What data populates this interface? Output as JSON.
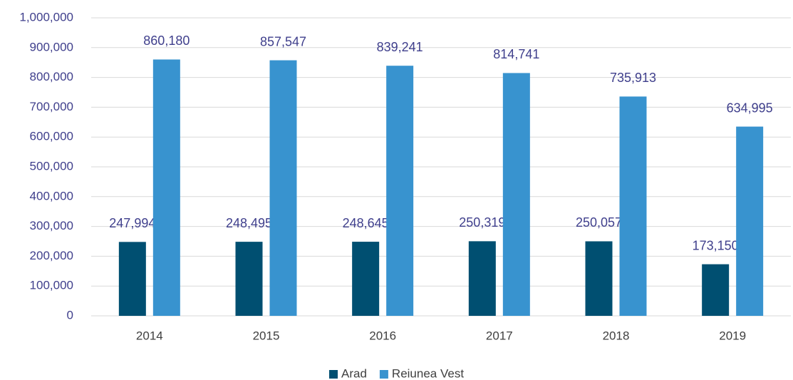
{
  "chart_data": {
    "type": "bar",
    "categories": [
      "2014",
      "2015",
      "2016",
      "2017",
      "2018",
      "2019"
    ],
    "series": [
      {
        "name": "Arad",
        "color": "#004f71",
        "values": [
          247994,
          248495,
          248645,
          250319,
          250057,
          173150
        ],
        "value_labels": [
          "247,994",
          "248,495",
          "248,645",
          "250,319",
          "250,057",
          "173,150"
        ]
      },
      {
        "name": "Reiunea Vest",
        "color": "#3893cf",
        "values": [
          860180,
          857547,
          839241,
          814741,
          735913,
          634995
        ],
        "value_labels": [
          "860,180",
          "857,547",
          "839,241",
          "814,741",
          "735,913",
          "634,995"
        ]
      }
    ],
    "ylim": [
      0,
      1000000
    ],
    "yticks": [
      0,
      {
        "value": 100000,
        "label": "100,000"
      },
      {
        "value": 200000,
        "label": "200,000"
      },
      {
        "value": 300000,
        "label": "300,000"
      },
      {
        "value": 400000,
        "label": "400,000"
      },
      {
        "value": 500000,
        "label": "500,000"
      },
      {
        "value": 600000,
        "label": "600,000"
      },
      {
        "value": 700000,
        "label": "700,000"
      },
      {
        "value": 800000,
        "label": "800,000"
      },
      {
        "value": 900000,
        "label": "900,000"
      },
      {
        "value": 1000000,
        "label": "1,000,000"
      }
    ],
    "grid": true,
    "legend": "bottom"
  }
}
